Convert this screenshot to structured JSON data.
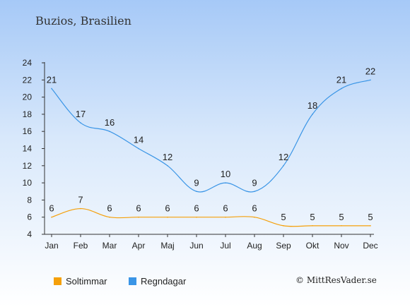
{
  "chart_data": {
    "type": "line",
    "title": "Buzios, Brasilien",
    "categories": [
      "Jan",
      "Feb",
      "Mar",
      "Apr",
      "Maj",
      "Jun",
      "Jul",
      "Aug",
      "Sep",
      "Okt",
      "Nov",
      "Dec"
    ],
    "ylim": [
      4,
      24
    ],
    "yticks": [
      4,
      6,
      8,
      10,
      12,
      14,
      16,
      18,
      20,
      22,
      24
    ],
    "grid": false,
    "legend_position": "bottom-left",
    "series": [
      {
        "name": "Soltimmar",
        "color": "#f5a00a",
        "values": [
          6,
          7,
          6,
          6,
          6,
          6,
          6,
          6,
          5,
          5,
          5,
          5
        ]
      },
      {
        "name": "Regndagar",
        "color": "#3a95e6",
        "values": [
          21,
          17,
          16,
          14,
          12,
          9,
          10,
          9,
          12,
          18,
          21,
          22
        ]
      }
    ]
  },
  "credit": "© MittResVader.se"
}
